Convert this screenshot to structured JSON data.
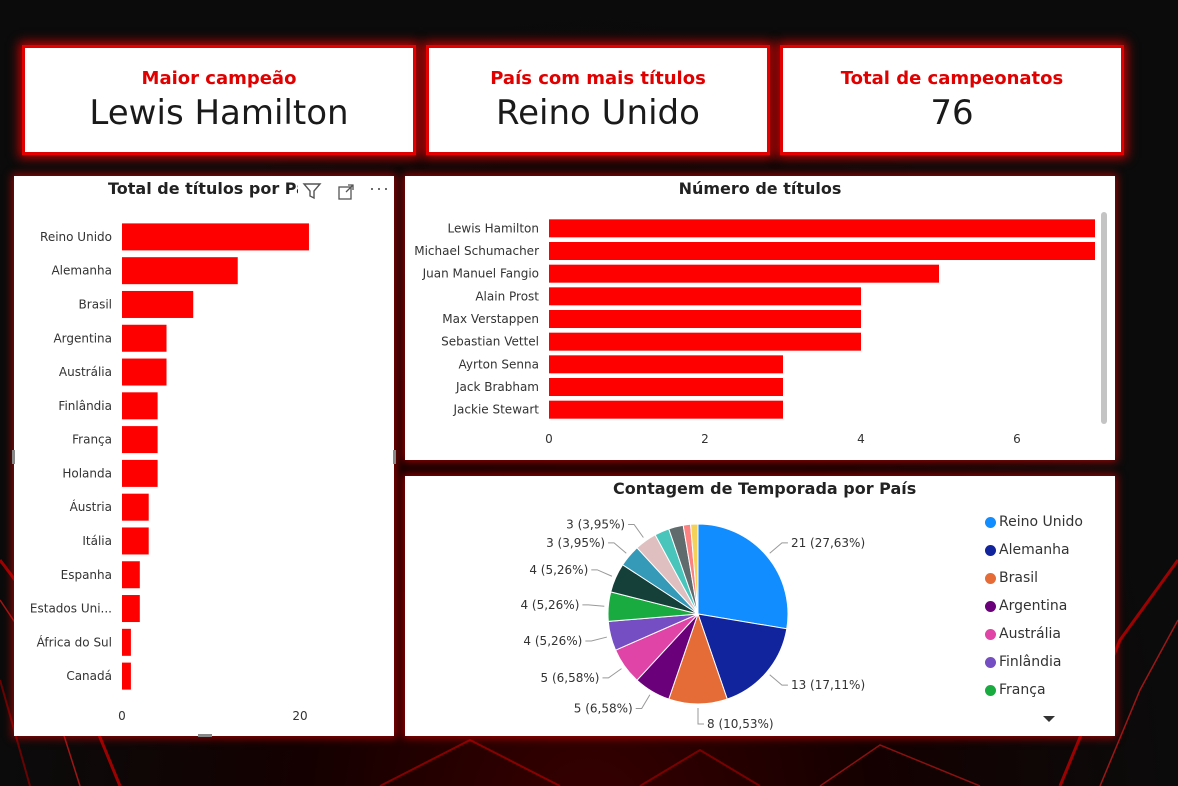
{
  "kpis": {
    "champion": {
      "label": "Maior campeão",
      "value": "Lewis Hamilton"
    },
    "country": {
      "label": "País com mais títulos",
      "value": "Reino Unido"
    },
    "total": {
      "label": "Total de campeonatos",
      "value": "76"
    }
  },
  "colors": {
    "accent": "#ff0000",
    "border": "#e30000"
  },
  "icons": {
    "filter": "filter-icon",
    "focus": "focus-mode-icon",
    "more": "more-options-icon",
    "scroll": "chevron-down-icon"
  },
  "chart_data": [
    {
      "type": "bar",
      "orientation": "horizontal",
      "title": "Total de títulos por País",
      "categories": [
        "Reino Unido",
        "Alemanha",
        "Brasil",
        "Argentina",
        "Austrália",
        "Finlândia",
        "França",
        "Holanda",
        "Áustria",
        "Itália",
        "Espanha",
        "Estados Uni...",
        "África do Sul",
        "Canadá"
      ],
      "values": [
        21,
        13,
        8,
        5,
        5,
        4,
        4,
        4,
        3,
        3,
        2,
        2,
        1,
        1
      ],
      "xticks": [
        "0",
        "20"
      ],
      "xlim": [
        0,
        31
      ]
    },
    {
      "type": "bar",
      "orientation": "horizontal",
      "title": "Número de títulos",
      "categories": [
        "Lewis Hamilton",
        "Michael Schumacher",
        "Juan Manuel Fangio",
        "Alain Prost",
        "Max Verstappen",
        "Sebastian Vettel",
        "Ayrton Senna",
        "Jack Brabham",
        "Jackie Stewart"
      ],
      "values": [
        7,
        7,
        5,
        4,
        4,
        4,
        3,
        3,
        3
      ],
      "xticks": [
        "0",
        "2",
        "4",
        "6"
      ],
      "xlim": [
        0,
        7
      ]
    },
    {
      "type": "pie",
      "title": "Contagem de Temporada por País",
      "slices": [
        {
          "name": "Reino Unido",
          "value": 21,
          "color": "#118dff"
        },
        {
          "name": "Alemanha",
          "value": 13,
          "color": "#12239e"
        },
        {
          "name": "Brasil",
          "value": 8,
          "color": "#e66c37"
        },
        {
          "name": "Argentina",
          "value": 5,
          "color": "#6b007b"
        },
        {
          "name": "Austrália",
          "value": 5,
          "color": "#e044a7"
        },
        {
          "name": "Finlândia",
          "value": 4,
          "color": "#744ec2"
        },
        {
          "name": "França",
          "value": 4,
          "color": "#1aab40"
        },
        {
          "name": "Holanda",
          "value": 4,
          "color": "#15403a"
        },
        {
          "name": "Áustria",
          "value": 3,
          "color": "#3599b8"
        },
        {
          "name": "Itália",
          "value": 3,
          "color": "#dfbfbf"
        },
        {
          "name": "Espanha",
          "value": 2,
          "color": "#4ac5bb"
        },
        {
          "name": "Estados Unidos",
          "value": 2,
          "color": "#5f6b6d"
        },
        {
          "name": "África do Sul",
          "value": 1,
          "color": "#fb8281"
        },
        {
          "name": "Canadá",
          "value": 1,
          "color": "#f4d25a"
        }
      ],
      "labels": [
        "21 (27,63%)",
        "13 (17,11%)",
        "8 (10,53%)",
        "5 (6,58%)",
        "5 (6,58%)",
        "4 (5,26%)",
        "4 (5,26%)",
        "4 (5,26%)",
        "3 (3,95%)",
        "3 (3,95%)"
      ],
      "legend": [
        "Reino Unido",
        "Alemanha",
        "Brasil",
        "Argentina",
        "Austrália",
        "Finlândia",
        "França"
      ]
    }
  ]
}
